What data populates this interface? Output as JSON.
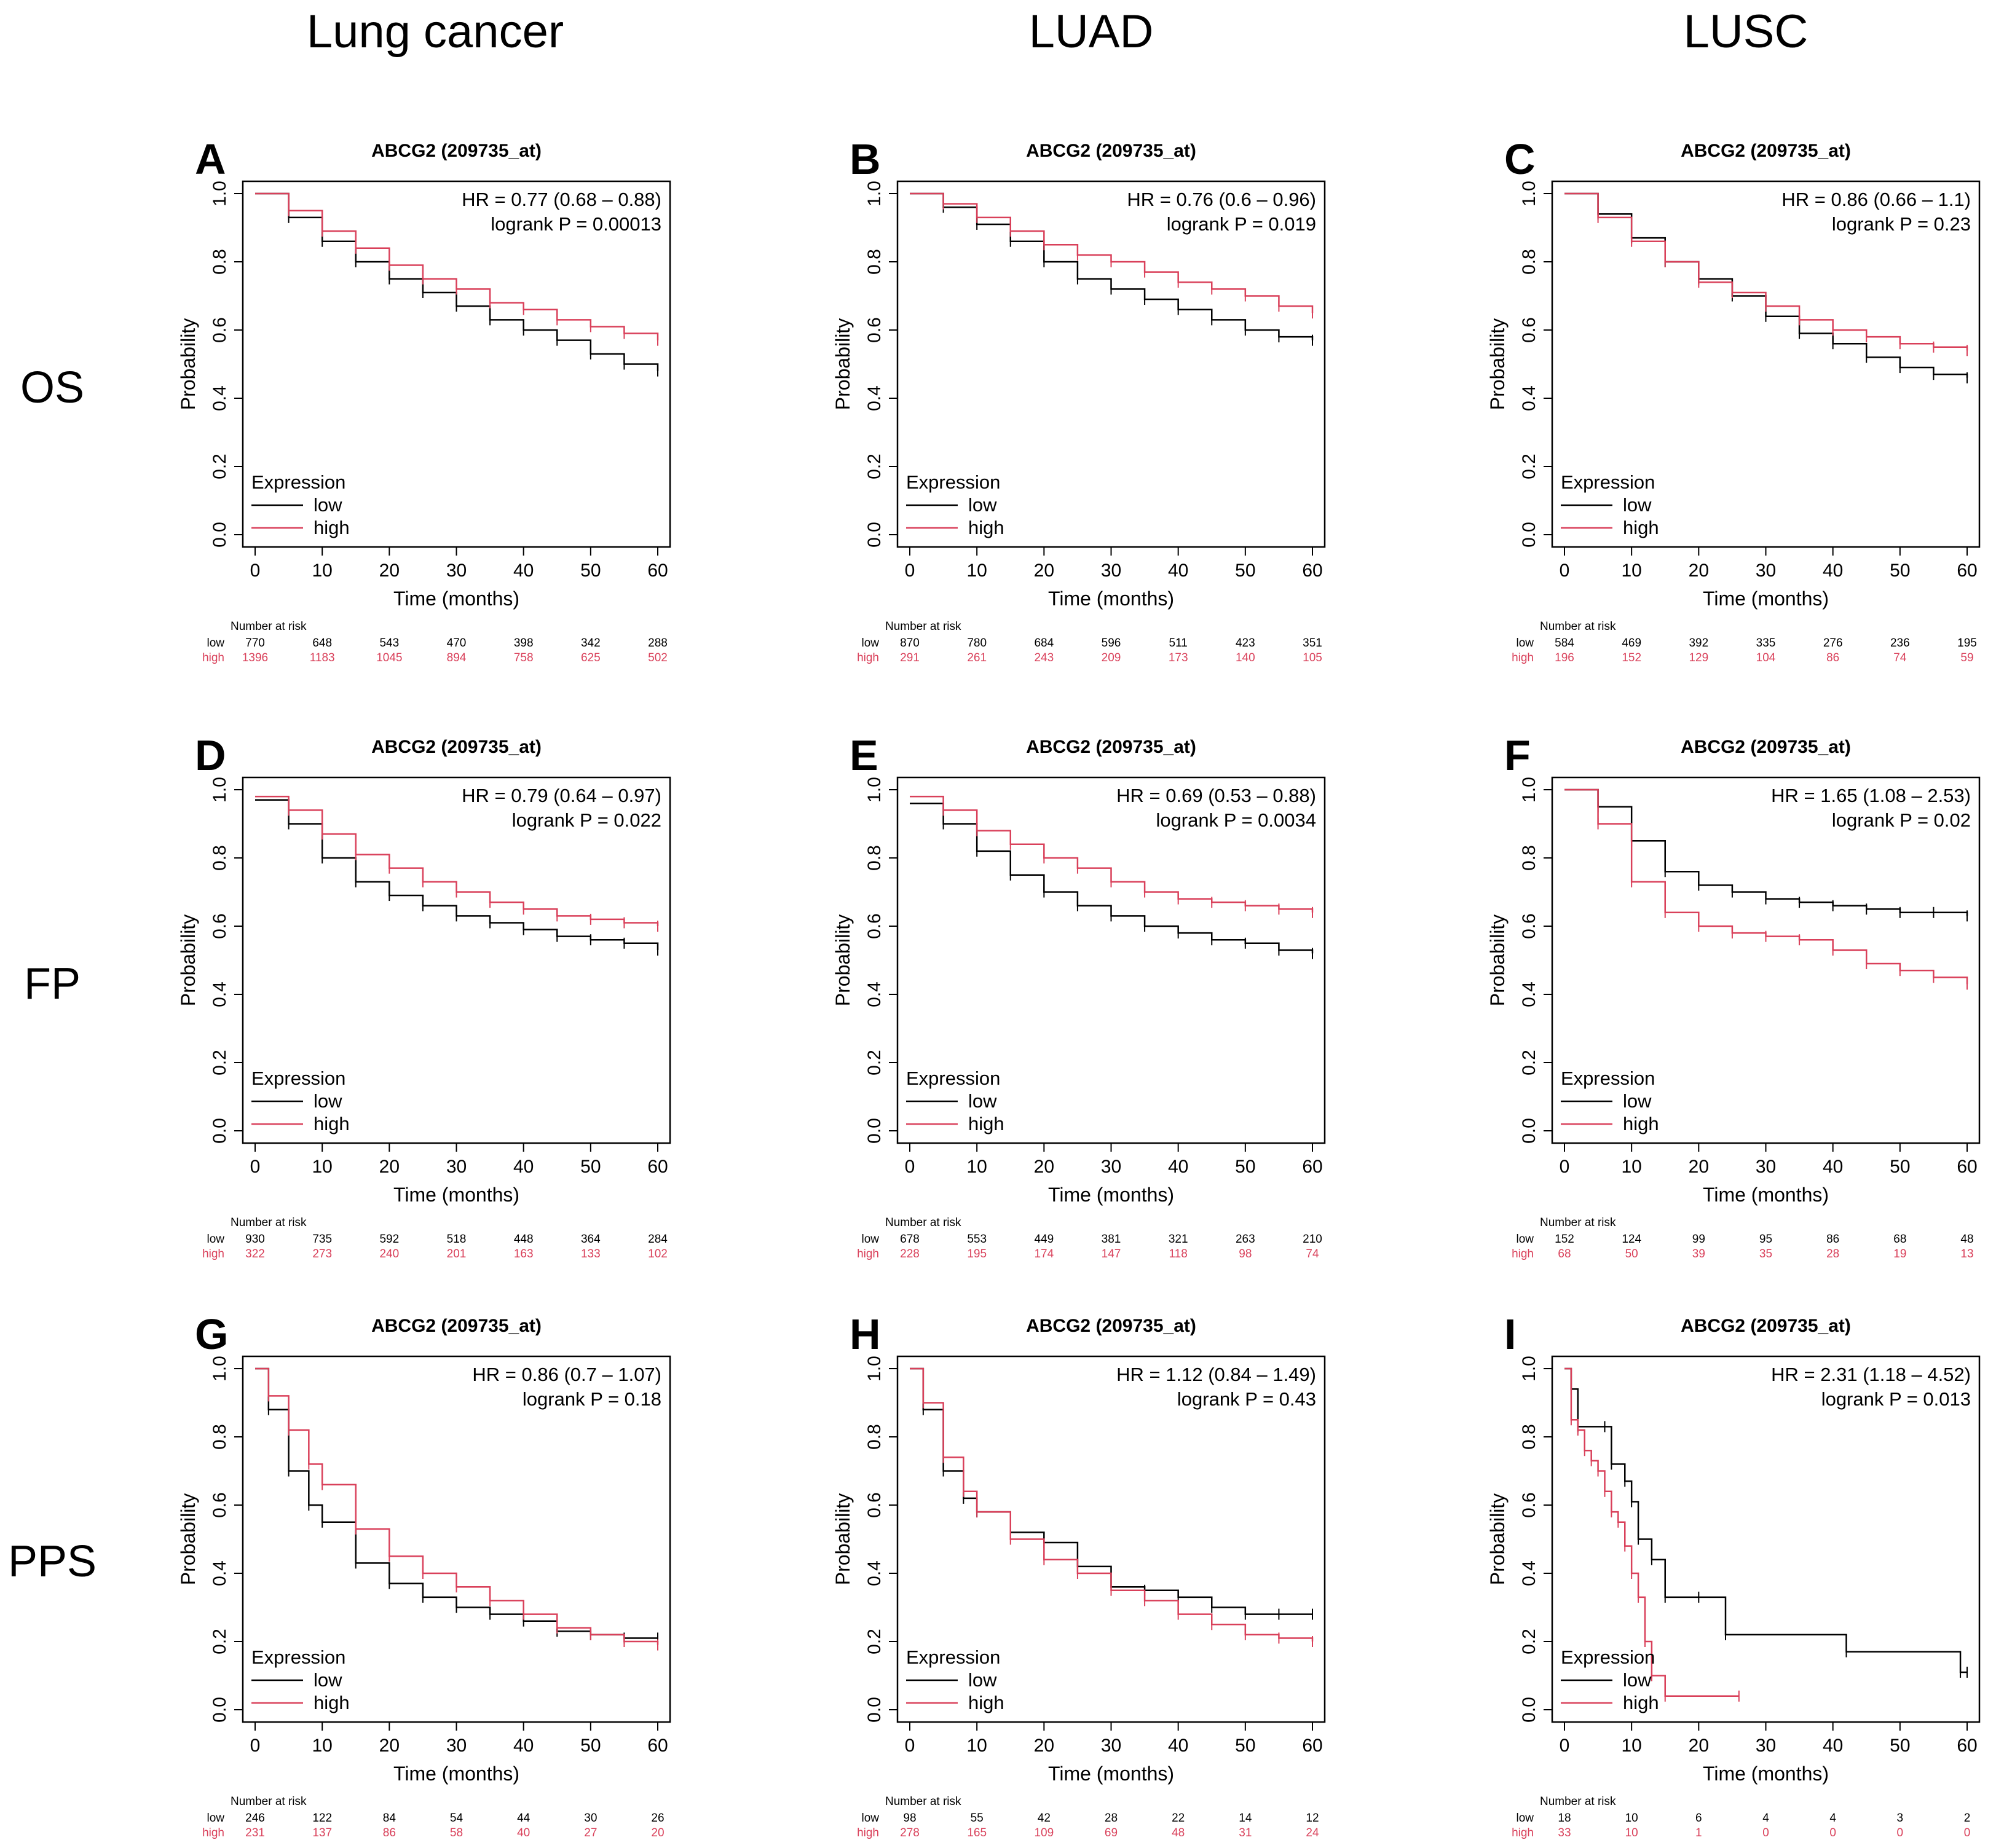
{
  "column_labels": [
    "Lung cancer",
    "LUAD",
    "LUSC"
  ],
  "row_labels": [
    "OS",
    "FP",
    "PPS"
  ],
  "colors": {
    "low": "#000000",
    "high": "#d9405a",
    "axis": "#000000"
  },
  "chart_data": [
    {
      "panel": "A",
      "type": "line",
      "title": "ABCG2 (209735_at)",
      "hr_text": "HR = 0.77 (0.68 – 0.88)",
      "logrank_text": "logrank P = 0.00013",
      "xlabel": "Time (months)",
      "ylabel": "Probability",
      "xlim": [
        0,
        60
      ],
      "ylim": [
        0,
        1
      ],
      "x_ticks": [
        0,
        10,
        20,
        30,
        40,
        50,
        60
      ],
      "y_ticks": [
        "0.0",
        "0.2",
        "0.4",
        "0.6",
        "0.8",
        "1.0"
      ],
      "legend_title": "Expression",
      "series": [
        {
          "name": "low",
          "x": [
            0,
            5,
            10,
            15,
            20,
            25,
            30,
            35,
            40,
            45,
            50,
            55,
            60
          ],
          "y": [
            1,
            0.93,
            0.86,
            0.8,
            0.75,
            0.71,
            0.67,
            0.63,
            0.6,
            0.57,
            0.53,
            0.5,
            0.48
          ]
        },
        {
          "name": "high",
          "x": [
            0,
            5,
            10,
            15,
            20,
            25,
            30,
            35,
            40,
            45,
            50,
            55,
            60
          ],
          "y": [
            1,
            0.95,
            0.89,
            0.84,
            0.79,
            0.75,
            0.72,
            0.68,
            0.66,
            0.63,
            0.61,
            0.59,
            0.57
          ]
        }
      ],
      "risk_table": {
        "header": "Number at risk",
        "low": [
          "770",
          "648",
          "543",
          "470",
          "398",
          "342",
          "288"
        ],
        "high": [
          "1396",
          "1183",
          "1045",
          "894",
          "758",
          "625",
          "502"
        ]
      }
    },
    {
      "panel": "B",
      "type": "line",
      "title": "ABCG2 (209735_at)",
      "hr_text": "HR = 0.76 (0.6 – 0.96)",
      "logrank_text": "logrank P = 0.019",
      "xlabel": "Time (months)",
      "ylabel": "Probability",
      "xlim": [
        0,
        60
      ],
      "ylim": [
        0,
        1
      ],
      "x_ticks": [
        0,
        10,
        20,
        30,
        40,
        50,
        60
      ],
      "y_ticks": [
        "0.0",
        "0.2",
        "0.4",
        "0.6",
        "0.8",
        "1.0"
      ],
      "legend_title": "Expression",
      "series": [
        {
          "name": "low",
          "x": [
            0,
            5,
            10,
            15,
            20,
            25,
            30,
            35,
            40,
            45,
            50,
            55,
            60
          ],
          "y": [
            1,
            0.96,
            0.91,
            0.86,
            0.8,
            0.75,
            0.72,
            0.69,
            0.66,
            0.63,
            0.6,
            0.58,
            0.57
          ]
        },
        {
          "name": "high",
          "x": [
            0,
            5,
            10,
            15,
            20,
            25,
            30,
            35,
            40,
            45,
            50,
            55,
            60
          ],
          "y": [
            1,
            0.97,
            0.93,
            0.89,
            0.85,
            0.82,
            0.8,
            0.77,
            0.74,
            0.72,
            0.7,
            0.67,
            0.65
          ]
        }
      ],
      "risk_table": {
        "header": "Number at risk",
        "low": [
          "870",
          "780",
          "684",
          "596",
          "511",
          "423",
          "351"
        ],
        "high": [
          "291",
          "261",
          "243",
          "209",
          "173",
          "140",
          "105"
        ]
      }
    },
    {
      "panel": "C",
      "type": "line",
      "title": "ABCG2 (209735_at)",
      "hr_text": "HR = 0.86 (0.66 – 1.1)",
      "logrank_text": "logrank P = 0.23",
      "xlabel": "Time (months)",
      "ylabel": "Probability",
      "xlim": [
        0,
        60
      ],
      "ylim": [
        0,
        1
      ],
      "x_ticks": [
        0,
        10,
        20,
        30,
        40,
        50,
        60
      ],
      "y_ticks": [
        "0.0",
        "0.2",
        "0.4",
        "0.6",
        "0.8",
        "1.0"
      ],
      "legend_title": "Expression",
      "series": [
        {
          "name": "low",
          "x": [
            0,
            5,
            10,
            15,
            20,
            25,
            30,
            35,
            40,
            45,
            50,
            55,
            60
          ],
          "y": [
            1,
            0.94,
            0.87,
            0.8,
            0.75,
            0.7,
            0.64,
            0.59,
            0.56,
            0.52,
            0.49,
            0.47,
            0.46
          ]
        },
        {
          "name": "high",
          "x": [
            0,
            5,
            10,
            15,
            20,
            25,
            30,
            35,
            40,
            45,
            50,
            55,
            60
          ],
          "y": [
            1,
            0.93,
            0.86,
            0.8,
            0.74,
            0.71,
            0.67,
            0.63,
            0.6,
            0.58,
            0.56,
            0.55,
            0.54
          ]
        }
      ],
      "risk_table": {
        "header": "Number at risk",
        "low": [
          "584",
          "469",
          "392",
          "335",
          "276",
          "236",
          "195"
        ],
        "high": [
          "196",
          "152",
          "129",
          "104",
          "86",
          "74",
          "59"
        ]
      }
    },
    {
      "panel": "D",
      "type": "line",
      "title": "ABCG2 (209735_at)",
      "hr_text": "HR = 0.79 (0.64 – 0.97)",
      "logrank_text": "logrank P = 0.022",
      "xlabel": "Time (months)",
      "ylabel": "Probability",
      "xlim": [
        0,
        60
      ],
      "ylim": [
        0,
        1
      ],
      "x_ticks": [
        0,
        10,
        20,
        30,
        40,
        50,
        60
      ],
      "y_ticks": [
        "0.0",
        "0.2",
        "0.4",
        "0.6",
        "0.8",
        "1.0"
      ],
      "legend_title": "Expression",
      "series": [
        {
          "name": "low",
          "x": [
            0,
            5,
            10,
            15,
            20,
            25,
            30,
            35,
            40,
            45,
            50,
            55,
            60
          ],
          "y": [
            0.97,
            0.9,
            0.8,
            0.73,
            0.69,
            0.66,
            0.63,
            0.61,
            0.59,
            0.57,
            0.56,
            0.55,
            0.53
          ]
        },
        {
          "name": "high",
          "x": [
            0,
            5,
            10,
            15,
            20,
            25,
            30,
            35,
            40,
            45,
            50,
            55,
            60
          ],
          "y": [
            0.98,
            0.94,
            0.87,
            0.81,
            0.77,
            0.73,
            0.7,
            0.67,
            0.65,
            0.63,
            0.62,
            0.61,
            0.6
          ]
        }
      ],
      "risk_table": {
        "header": "Number at risk",
        "low": [
          "930",
          "735",
          "592",
          "518",
          "448",
          "364",
          "284"
        ],
        "high": [
          "322",
          "273",
          "240",
          "201",
          "163",
          "133",
          "102"
        ]
      }
    },
    {
      "panel": "E",
      "type": "line",
      "title": "ABCG2 (209735_at)",
      "hr_text": "HR = 0.69 (0.53 – 0.88)",
      "logrank_text": "logrank P = 0.0034",
      "xlabel": "Time (months)",
      "ylabel": "Probability",
      "xlim": [
        0,
        60
      ],
      "ylim": [
        0,
        1
      ],
      "x_ticks": [
        0,
        10,
        20,
        30,
        40,
        50,
        60
      ],
      "y_ticks": [
        "0.0",
        "0.2",
        "0.4",
        "0.6",
        "0.8",
        "1.0"
      ],
      "legend_title": "Expression",
      "series": [
        {
          "name": "low",
          "x": [
            0,
            5,
            10,
            15,
            20,
            25,
            30,
            35,
            40,
            45,
            50,
            55,
            60
          ],
          "y": [
            0.96,
            0.9,
            0.82,
            0.75,
            0.7,
            0.66,
            0.63,
            0.6,
            0.58,
            0.56,
            0.55,
            0.53,
            0.52
          ]
        },
        {
          "name": "high",
          "x": [
            0,
            5,
            10,
            15,
            20,
            25,
            30,
            35,
            40,
            45,
            50,
            55,
            60
          ],
          "y": [
            0.98,
            0.94,
            0.88,
            0.84,
            0.8,
            0.77,
            0.73,
            0.7,
            0.68,
            0.67,
            0.66,
            0.65,
            0.64
          ]
        }
      ],
      "risk_table": {
        "header": "Number at risk",
        "low": [
          "678",
          "553",
          "449",
          "381",
          "321",
          "263",
          "210"
        ],
        "high": [
          "228",
          "195",
          "174",
          "147",
          "118",
          "98",
          "74"
        ]
      }
    },
    {
      "panel": "F",
      "type": "line",
      "title": "ABCG2 (209735_at)",
      "hr_text": "HR = 1.65 (1.08 – 2.53)",
      "logrank_text": "logrank P = 0.02",
      "xlabel": "Time (months)",
      "ylabel": "Probability",
      "xlim": [
        0,
        60
      ],
      "ylim": [
        0,
        1
      ],
      "x_ticks": [
        0,
        10,
        20,
        30,
        40,
        50,
        60
      ],
      "y_ticks": [
        "0.0",
        "0.2",
        "0.4",
        "0.6",
        "0.8",
        "1.0"
      ],
      "legend_title": "Expression",
      "series": [
        {
          "name": "low",
          "x": [
            0,
            5,
            10,
            15,
            20,
            25,
            30,
            35,
            40,
            45,
            50,
            55,
            60
          ],
          "y": [
            1,
            0.95,
            0.85,
            0.76,
            0.72,
            0.7,
            0.68,
            0.67,
            0.66,
            0.65,
            0.64,
            0.64,
            0.63
          ]
        },
        {
          "name": "high",
          "x": [
            0,
            5,
            10,
            15,
            20,
            25,
            30,
            35,
            40,
            45,
            50,
            55,
            60
          ],
          "y": [
            1,
            0.9,
            0.73,
            0.64,
            0.6,
            0.58,
            0.57,
            0.56,
            0.53,
            0.49,
            0.47,
            0.45,
            0.43
          ]
        }
      ],
      "risk_table": {
        "header": "Number at risk",
        "low": [
          "152",
          "124",
          "99",
          "95",
          "86",
          "68",
          "48"
        ],
        "high": [
          "68",
          "50",
          "39",
          "35",
          "28",
          "19",
          "13"
        ]
      }
    },
    {
      "panel": "G",
      "type": "line",
      "title": "ABCG2 (209735_at)",
      "hr_text": "HR = 0.86 (0.7 – 1.07)",
      "logrank_text": "logrank P = 0.18",
      "xlabel": "Time (months)",
      "ylabel": "Probability",
      "xlim": [
        0,
        60
      ],
      "ylim": [
        0,
        1
      ],
      "x_ticks": [
        0,
        10,
        20,
        30,
        40,
        50,
        60
      ],
      "y_ticks": [
        "0.0",
        "0.2",
        "0.4",
        "0.6",
        "0.8",
        "1.0"
      ],
      "legend_title": "Expression",
      "series": [
        {
          "name": "low",
          "x": [
            0,
            2,
            5,
            8,
            10,
            15,
            20,
            25,
            30,
            35,
            40,
            45,
            50,
            55,
            60
          ],
          "y": [
            1,
            0.88,
            0.7,
            0.6,
            0.55,
            0.43,
            0.37,
            0.33,
            0.3,
            0.28,
            0.26,
            0.23,
            0.22,
            0.21,
            0.21
          ]
        },
        {
          "name": "high",
          "x": [
            0,
            2,
            5,
            8,
            10,
            15,
            20,
            25,
            30,
            35,
            40,
            45,
            50,
            55,
            60
          ],
          "y": [
            1,
            0.92,
            0.82,
            0.72,
            0.66,
            0.53,
            0.45,
            0.4,
            0.36,
            0.32,
            0.28,
            0.24,
            0.22,
            0.2,
            0.19
          ]
        }
      ],
      "risk_table": {
        "header": "Number at risk",
        "low": [
          "246",
          "122",
          "84",
          "54",
          "44",
          "30",
          "26"
        ],
        "high": [
          "231",
          "137",
          "86",
          "58",
          "40",
          "27",
          "20"
        ]
      }
    },
    {
      "panel": "H",
      "type": "line",
      "title": "ABCG2 (209735_at)",
      "hr_text": "HR = 1.12 (0.84 – 1.49)",
      "logrank_text": "logrank P = 0.43",
      "xlabel": "Time (months)",
      "ylabel": "Probability",
      "xlim": [
        0,
        60
      ],
      "ylim": [
        0,
        1
      ],
      "x_ticks": [
        0,
        10,
        20,
        30,
        40,
        50,
        60
      ],
      "y_ticks": [
        "0.0",
        "0.2",
        "0.4",
        "0.6",
        "0.8",
        "1.0"
      ],
      "legend_title": "Expression",
      "series": [
        {
          "name": "low",
          "x": [
            0,
            2,
            5,
            8,
            10,
            15,
            20,
            25,
            30,
            35,
            40,
            45,
            50,
            55,
            60
          ],
          "y": [
            1,
            0.88,
            0.7,
            0.62,
            0.58,
            0.52,
            0.49,
            0.42,
            0.36,
            0.35,
            0.33,
            0.3,
            0.28,
            0.28,
            0.28
          ]
        },
        {
          "name": "high",
          "x": [
            0,
            2,
            5,
            8,
            10,
            15,
            20,
            25,
            30,
            35,
            40,
            45,
            50,
            55,
            60
          ],
          "y": [
            1,
            0.9,
            0.74,
            0.64,
            0.58,
            0.5,
            0.44,
            0.4,
            0.35,
            0.32,
            0.28,
            0.25,
            0.22,
            0.21,
            0.2
          ]
        }
      ],
      "risk_table": {
        "header": "Number at risk",
        "low": [
          "98",
          "55",
          "42",
          "28",
          "22",
          "14",
          "12"
        ],
        "high": [
          "278",
          "165",
          "109",
          "69",
          "48",
          "31",
          "24"
        ]
      }
    },
    {
      "panel": "I",
      "type": "line",
      "title": "ABCG2 (209735_at)",
      "hr_text": "HR = 2.31 (1.18 – 4.52)",
      "logrank_text": "logrank P = 0.013",
      "xlabel": "Time (months)",
      "ylabel": "Probability",
      "xlim": [
        0,
        60
      ],
      "ylim": [
        0,
        1
      ],
      "x_ticks": [
        0,
        10,
        20,
        30,
        40,
        50,
        60
      ],
      "y_ticks": [
        "0.0",
        "0.2",
        "0.4",
        "0.6",
        "0.8",
        "1.0"
      ],
      "legend_title": "Expression",
      "series": [
        {
          "name": "low",
          "x": [
            0,
            1,
            2,
            6,
            7,
            9,
            10,
            11,
            13,
            15,
            20,
            24,
            42,
            59,
            60
          ],
          "y": [
            1,
            0.94,
            0.83,
            0.83,
            0.72,
            0.67,
            0.61,
            0.5,
            0.44,
            0.33,
            0.33,
            0.22,
            0.17,
            0.11,
            0.11
          ]
        },
        {
          "name": "high",
          "x": [
            0,
            1,
            2,
            3,
            4,
            5,
            6,
            7,
            8,
            9,
            10,
            11,
            12,
            13,
            15,
            26
          ],
          "y": [
            1,
            0.85,
            0.82,
            0.76,
            0.73,
            0.7,
            0.64,
            0.58,
            0.55,
            0.48,
            0.4,
            0.33,
            0.2,
            0.1,
            0.04,
            0.04
          ]
        }
      ],
      "risk_table": {
        "header": "Number at risk",
        "low": [
          "18",
          "10",
          "6",
          "4",
          "4",
          "3",
          "2"
        ],
        "high": [
          "33",
          "10",
          "1",
          "0",
          "0",
          "0",
          "0"
        ]
      }
    }
  ]
}
